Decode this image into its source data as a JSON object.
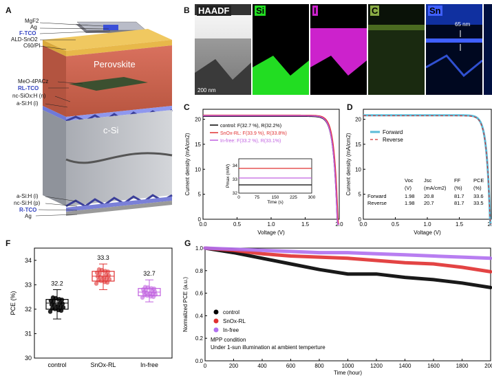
{
  "panelA": {
    "label": "A",
    "layers_top": [
      "MgF2",
      "Ag",
      "F-TCO",
      "ALD-SnO2",
      "C60/PI"
    ],
    "perovskite": "Perovskite",
    "layers_mid": [
      "MeO-4PACz",
      "RL-TCO",
      "nc-SiOx:H (n)",
      "a-Si:H (i)"
    ],
    "csi": "c-Si",
    "layers_bottom": [
      "a-Si:H (i)",
      "nc-Si:H (p)",
      "R-TCO",
      "Ag"
    ]
  },
  "panelB": {
    "label": "B",
    "maps": [
      {
        "name": "HAADF",
        "color": "#888888"
      },
      {
        "name": "Si",
        "color": "#22dd22"
      },
      {
        "name": "I",
        "color": "#cc22cc"
      },
      {
        "name": "C",
        "color": "#446622"
      },
      {
        "name": "Sn",
        "color": "#2244ee"
      }
    ],
    "scalebar": "200 nm",
    "thickness": "65 nm"
  },
  "panelC": {
    "label": "C",
    "xlabel": "Voltage (V)",
    "ylabel": "Current density (mA/cm2)",
    "legend": [
      "control: F(32.7 %), R(32.2%)",
      "SnOx-RL: F(33.9 %), R(33.8%)",
      "In-free: F(33.2 %), R(33.1%)"
    ],
    "inset_xlabel": "Time (s)",
    "inset_ylabel": "Pmax (mW)"
  },
  "panelD": {
    "label": "D",
    "xlabel": "Voltage (V)",
    "ylabel": "Current density (mA/cm2)",
    "legend": [
      "Forward",
      "Reverse"
    ],
    "table": {
      "headers": [
        "",
        "Voc",
        "Jsc",
        "FF",
        "PCE"
      ],
      "units": [
        "",
        "(V)",
        "(mA/cm2)",
        "(%)",
        "(%)"
      ],
      "rows": [
        [
          "Forward",
          "1.98",
          "20.8",
          "81.7",
          "33.6"
        ],
        [
          "Reverse",
          "1.98",
          "20.7",
          "81.7",
          "33.5"
        ]
      ]
    }
  },
  "panelF": {
    "label": "F",
    "ylabel": "PCE (%)",
    "categories": [
      "control",
      "SnOx-RL",
      "In-free"
    ],
    "means": [
      "32.2",
      "33.3",
      "32.7"
    ]
  },
  "panelG": {
    "label": "G",
    "xlabel": "Time (hour)",
    "ylabel": "Normalized PCE (a.u.)",
    "legend": [
      "control",
      "SnOx-RL",
      "In-free"
    ],
    "note1": "MPP condition",
    "note2": "Under 1-sun illumination at ambient temperture"
  },
  "chart_data": [
    {
      "type": "line",
      "title": "",
      "xlabel": "Voltage (V)",
      "ylabel": "Current density (mA/cm2)",
      "xlim": [
        0,
        2.0
      ],
      "ylim": [
        0,
        22
      ],
      "xticks": [
        0.0,
        0.5,
        1.0,
        1.5,
        2.0
      ],
      "yticks": [
        0,
        5,
        10,
        15,
        20
      ],
      "series": [
        {
          "name": "control: F(32.7 %), R(32.2%)",
          "color": "#000000",
          "jsc": 20.6,
          "voc": 1.97
        },
        {
          "name": "SnOx-RL: F(33.9 %), R(33.8%)",
          "color": "#e03030",
          "jsc": 20.8,
          "voc": 1.98
        },
        {
          "name": "In-free: F(33.2 %), R(33.1%)",
          "color": "#c060e0",
          "jsc": 20.7,
          "voc": 1.97
        }
      ],
      "inset": {
        "xlabel": "Time (s)",
        "ylabel": "Pmax (mW)",
        "xlim": [
          0,
          300
        ],
        "ylim": [
          32,
          34.5
        ],
        "xticks": [
          0,
          75,
          150,
          225,
          300
        ],
        "yticks": [
          32,
          33,
          34
        ],
        "series": [
          {
            "name": "control",
            "color": "#000000",
            "value": 32.6
          },
          {
            "name": "SnOx-RL",
            "color": "#e03030",
            "value": 33.8
          },
          {
            "name": "In-free",
            "color": "#c060e0",
            "value": 33.1
          }
        ]
      }
    },
    {
      "type": "line",
      "xlabel": "Voltage (V)",
      "ylabel": "Current density (mA/cm2)",
      "xlim": [
        0,
        2.0
      ],
      "ylim": [
        0,
        22
      ],
      "xticks": [
        0.0,
        0.5,
        1.0,
        1.5,
        2.0
      ],
      "yticks": [
        0,
        5,
        10,
        15,
        20
      ],
      "series": [
        {
          "name": "Forward",
          "color": "#5bbbd8",
          "jsc": 20.8,
          "voc": 1.98
        },
        {
          "name": "Reverse",
          "color": "#d03030",
          "jsc": 20.7,
          "voc": 1.98
        }
      ]
    },
    {
      "type": "box",
      "ylabel": "PCE (%)",
      "ylim": [
        30,
        34.5
      ],
      "yticks": [
        30,
        31,
        32,
        33,
        34
      ],
      "categories": [
        "control",
        "SnOx-RL",
        "In-free"
      ],
      "colors": [
        "#000000",
        "#e03030",
        "#c060e0"
      ],
      "means": [
        32.2,
        33.3,
        32.7
      ],
      "boxes": [
        {
          "q1": 32.0,
          "median": 32.25,
          "q3": 32.4,
          "min": 31.6,
          "max": 32.8
        },
        {
          "q1": 33.15,
          "median": 33.35,
          "q3": 33.55,
          "min": 32.8,
          "max": 33.85
        },
        {
          "q1": 32.55,
          "median": 32.7,
          "q3": 32.85,
          "min": 32.3,
          "max": 33.2
        }
      ]
    },
    {
      "type": "line",
      "xlabel": "Time (hour)",
      "ylabel": "Normalized PCE (a.u.)",
      "xlim": [
        0,
        2000
      ],
      "ylim": [
        0,
        1.0
      ],
      "xticks": [
        0,
        200,
        400,
        600,
        800,
        1000,
        1200,
        1400,
        1600,
        1800,
        2000
      ],
      "yticks": [
        0.0,
        0.2,
        0.4,
        0.6,
        0.8,
        1.0
      ],
      "series": [
        {
          "name": "control",
          "color": "#000000",
          "x": [
            0,
            200,
            400,
            600,
            800,
            1000,
            1200,
            1400,
            1600,
            1800,
            2000
          ],
          "y": [
            1.0,
            0.96,
            0.91,
            0.86,
            0.81,
            0.77,
            0.77,
            0.74,
            0.72,
            0.69,
            0.65
          ]
        },
        {
          "name": "SnOx-RL",
          "color": "#e03030",
          "x": [
            0,
            200,
            400,
            600,
            800,
            1000,
            1200,
            1400,
            1600,
            1800,
            2000
          ],
          "y": [
            1.0,
            0.98,
            0.95,
            0.93,
            0.92,
            0.91,
            0.89,
            0.87,
            0.86,
            0.83,
            0.79
          ]
        },
        {
          "name": "In-free",
          "color": "#b070f0",
          "x": [
            0,
            200,
            400,
            600,
            800,
            1000,
            1200,
            1400,
            1600,
            1800,
            2000
          ],
          "y": [
            1.0,
            0.99,
            0.98,
            0.97,
            0.96,
            0.96,
            0.95,
            0.94,
            0.93,
            0.92,
            0.91
          ]
        }
      ]
    }
  ]
}
